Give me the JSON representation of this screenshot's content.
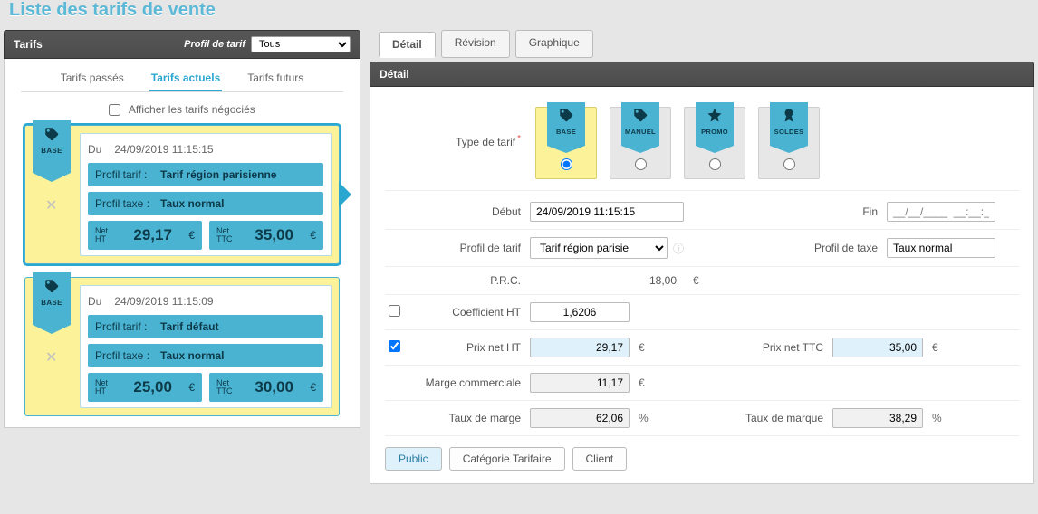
{
  "page_title": "Liste des tarifs de vente",
  "left": {
    "header_label": "Tarifs",
    "profil_label": "Profil de tarif",
    "profil_options": [
      "Tous"
    ],
    "profil_value": "Tous",
    "tabs": {
      "past": "Tarifs passés",
      "current": "Tarifs actuels",
      "future": "Tarifs futurs",
      "active": "current"
    },
    "negocies_label": "Afficher les tarifs négociés",
    "cards": [
      {
        "ribbon": "BASE",
        "du_label": "Du",
        "du_value": "24/09/2019 11:15:15",
        "profil_tarif_label": "Profil tarif :",
        "profil_tarif_value": "Tarif région parisienne",
        "profil_taxe_label": "Profil taxe :",
        "profil_taxe_value": "Taux normal",
        "net_ht_label": "Net HT",
        "net_ht_value": "29,17",
        "net_ttc_label": "Net TTC",
        "net_ttc_value": "35,00",
        "selected": true
      },
      {
        "ribbon": "BASE",
        "du_label": "Du",
        "du_value": "24/09/2019 11:15:09",
        "profil_tarif_label": "Profil tarif :",
        "profil_tarif_value": "Tarif défaut",
        "profil_taxe_label": "Profil taxe :",
        "profil_taxe_value": "Taux normal",
        "net_ht_label": "Net HT",
        "net_ht_value": "25,00",
        "net_ttc_label": "Net TTC",
        "net_ttc_value": "30,00",
        "selected": false
      }
    ]
  },
  "right": {
    "tabs": {
      "detail": "Détail",
      "revision": "Révision",
      "graph": "Graphique",
      "active": "detail"
    },
    "header_label": "Détail",
    "type_label": "Type de tarif",
    "types": [
      {
        "key": "base",
        "label": "BASE",
        "icon": "tag"
      },
      {
        "key": "manuel",
        "label": "MANUEL",
        "icon": "tag"
      },
      {
        "key": "promo",
        "label": "PROMO",
        "icon": "star"
      },
      {
        "key": "soldes",
        "label": "SOLDES",
        "icon": "badge"
      }
    ],
    "type_selected": "base",
    "debut_label": "Début",
    "debut_value": "24/09/2019 11:15:15",
    "fin_label": "Fin",
    "fin_placeholder": "__/__/____  __:__:__",
    "profil_tarif_label": "Profil de tarif",
    "profil_tarif_value": "Tarif région parisie",
    "profil_taxe_label": "Profil de taxe",
    "profil_taxe_value": "Taux normal",
    "prc_label": "P.R.C.",
    "prc_value": "18,00",
    "coeff_label": "Coefficient HT",
    "coeff_value": "1,6206",
    "coeff_checked": false,
    "net_ht_label": "Prix net HT",
    "net_ht_value": "29,17",
    "net_ht_checked": true,
    "net_ttc_label": "Prix net TTC",
    "net_ttc_value": "35,00",
    "marge_com_label": "Marge commerciale",
    "marge_com_value": "11,17",
    "taux_marge_label": "Taux de marge",
    "taux_marge_value": "62,06",
    "taux_marque_label": "Taux de marque",
    "taux_marque_value": "38,29",
    "bottom_buttons": {
      "public": "Public",
      "categorie": "Catégorie Tarifaire",
      "client": "Client",
      "active": "public"
    },
    "currency": "€",
    "percent": "%"
  },
  "colors": {
    "accent": "#4bb3d2",
    "highlight": "#fbf29a",
    "text": "#555555"
  }
}
